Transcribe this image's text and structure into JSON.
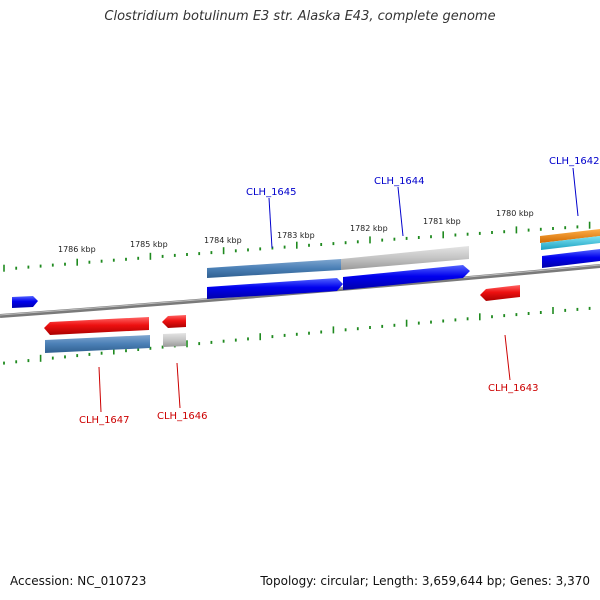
{
  "title": "Clostridium botulinum E3 str. Alaska E43, complete genome",
  "footer": {
    "accession": "Accession: NC_010723",
    "topology": "Topology: circular; Length: 3,659,644 bp; Genes: 3,370"
  },
  "colors": {
    "backbone": "#888888",
    "tick": "#1f8a1f",
    "forward_gene": "#0000ee",
    "reverse_gene": "#ee1111",
    "forward_label": "#0000cc",
    "reverse_label": "#cc0000",
    "steel_blue": "#4a7fb5",
    "gray_feature": "#bbbbbb",
    "orange": "#f08000",
    "cyan": "#22bbdd"
  },
  "kbp_labels": [
    "1786 kbp",
    "1785 kbp",
    "1784 kbp",
    "1783 kbp",
    "1782 kbp",
    "1781 kbp",
    "1780 kbp"
  ],
  "genes": [
    {
      "name": "CLH_1642",
      "strand": "forward"
    },
    {
      "name": "CLH_1643",
      "strand": "reverse"
    },
    {
      "name": "CLH_1644",
      "strand": "forward"
    },
    {
      "name": "CLH_1645",
      "strand": "forward"
    },
    {
      "name": "CLH_1646",
      "strand": "reverse"
    },
    {
      "name": "CLH_1647",
      "strand": "reverse"
    }
  ]
}
